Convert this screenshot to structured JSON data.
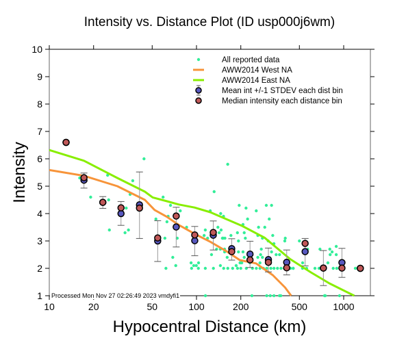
{
  "chart_data": {
    "type": "scatter",
    "title": "Intensity vs. Distance Plot (ID usp000j6wm)",
    "xlabel": "Hypocentral Distance (km)",
    "ylabel": "Intensity",
    "xscale": "log",
    "xlim": [
      10,
      1520
    ],
    "ylim": [
      1,
      10
    ],
    "xticks": [
      10,
      20,
      50,
      100,
      200,
      500,
      1000
    ],
    "xtick_labels": [
      "10",
      "20",
      "50",
      "100",
      "200",
      "500",
      "1000"
    ],
    "yticks": [
      1,
      2,
      3,
      4,
      5,
      6,
      7,
      8,
      9,
      10
    ],
    "ytick_labels": [
      "1",
      "2",
      "3",
      "4",
      "5",
      "6",
      "7",
      "8",
      "9",
      "10"
    ],
    "grid": false,
    "legend_position": "top-right",
    "footer": "Processed Mon Nov 27 02:26:49 2023 vmdyfi1",
    "colors": {
      "scatter": "#33ee99",
      "west": "#f7943a",
      "east": "#88ee00",
      "mean": "#5858c0",
      "median": "#c05858",
      "errorbar": "#999999"
    },
    "legend": [
      {
        "label": "All reported data",
        "kind": "scatter"
      },
      {
        "label": "AWW2014 West NA",
        "kind": "west"
      },
      {
        "label": "AWW2014 East NA",
        "kind": "east"
      },
      {
        "label": "Mean int +/-1 STDEV each dist bin",
        "kind": "mean"
      },
      {
        "label": "Median intensity each distance bin",
        "kind": "median"
      }
    ],
    "series": [
      {
        "name": "AWW2014 West NA",
        "type": "line",
        "x": [
          10,
          17.2,
          29.0,
          44.6,
          52.0,
          63.0,
          75.5,
          97.0,
          124.0,
          159.0,
          197.0,
          254.0,
          330.0,
          400.0,
          440.0
        ],
        "y": [
          5.59,
          5.38,
          5.0,
          4.5,
          4.13,
          3.88,
          3.59,
          3.26,
          2.97,
          2.63,
          2.3,
          2.18,
          1.75,
          1.3,
          1.0
        ]
      },
      {
        "name": "AWW2014 East NA",
        "type": "line",
        "x": [
          10,
          17.2,
          29.0,
          44.6,
          50.4,
          63.0,
          76.0,
          97.0,
          124.0,
          159.0,
          204.0,
          290.0,
          432.0,
          600.0,
          800.0,
          1180.0
        ],
        "y": [
          6.32,
          5.93,
          5.3,
          4.8,
          4.59,
          4.45,
          4.33,
          4.22,
          4.05,
          3.8,
          3.55,
          3.12,
          2.34,
          1.85,
          1.45,
          1.0
        ]
      },
      {
        "name": "Mean int +/-1 STDEV each dist bin",
        "type": "errorbar",
        "x": [
          13.0,
          17.2,
          23.1,
          30.7,
          41.0,
          54.5,
          72.8,
          97.3,
          130.0,
          173.5,
          231.0,
          308.0,
          410.0,
          547.0,
          728.0,
          973.0,
          1297.0
        ],
        "y": [
          6.6,
          5.22,
          4.41,
          4.0,
          4.32,
          3.0,
          3.51,
          3.01,
          3.21,
          2.72,
          2.52,
          2.32,
          2.22,
          2.61,
          2.01,
          2.21,
          2.0
        ],
        "err_low": [
          null,
          4.93,
          4.19,
          3.57,
          3.09,
          2.25,
          2.78,
          2.46,
          2.67,
          2.3,
          2.03,
          1.87,
          1.76,
          2.09,
          1.37,
          1.67,
          null
        ],
        "err_high": [
          null,
          5.48,
          4.62,
          4.44,
          5.52,
          3.74,
          4.23,
          3.53,
          3.73,
          3.08,
          2.99,
          2.74,
          2.67,
          3.09,
          2.65,
          2.73,
          null
        ]
      },
      {
        "name": "Median intensity each distance bin",
        "type": "scatter",
        "x": [
          13.0,
          17.2,
          23.1,
          30.7,
          41.0,
          54.5,
          72.8,
          97.3,
          130.0,
          173.5,
          231.0,
          308.0,
          410.0,
          547.0,
          728.0,
          973.0,
          1297.0
        ],
        "y": [
          6.6,
          5.31,
          4.41,
          4.21,
          4.2,
          3.11,
          3.91,
          3.22,
          3.31,
          2.61,
          2.31,
          2.22,
          2.02,
          2.91,
          2.01,
          2.01,
          2.0
        ]
      },
      {
        "name": "All reported data",
        "type": "scatter",
        "points": [
          [
            16.1,
            5.3
          ],
          [
            19.1,
            4.6
          ],
          [
            24.9,
            5.4
          ],
          [
            25.3,
            4.5
          ],
          [
            33.3,
            4.2
          ],
          [
            35.4,
            4.7
          ],
          [
            36.9,
            5.2
          ],
          [
            44.0,
            6.0
          ],
          [
            25.6,
            3.4
          ],
          [
            34.5,
            3.4
          ],
          [
            32.7,
            3.3
          ],
          [
            59.3,
            4.6
          ],
          [
            64.2,
            3.9
          ],
          [
            66.6,
            4.3
          ],
          [
            53.0,
            3.8
          ],
          [
            63.0,
            3.7
          ],
          [
            61.0,
            3.1
          ],
          [
            77.6,
            4.1
          ],
          [
            74.0,
            3.1
          ],
          [
            85.7,
            3.5
          ],
          [
            69.0,
            2.4
          ],
          [
            72.3,
            2.1
          ],
          [
            62.0,
            2.0
          ],
          [
            114.8,
            3.4
          ],
          [
            112.7,
            3.2
          ],
          [
            119.0,
            3.1
          ],
          [
            126.5,
            2.5
          ],
          [
            139.8,
            3.5
          ],
          [
            142.5,
            3.3
          ],
          [
            137.0,
            2.7
          ],
          [
            151.6,
            3.1
          ],
          [
            155.2,
            2.7
          ],
          [
            124.0,
            4.1
          ],
          [
            146.0,
            4.0
          ],
          [
            131.8,
            4.8
          ],
          [
            103.3,
            2.2
          ],
          [
            91.9,
            2.2
          ],
          [
            92.6,
            2.0
          ],
          [
            99.7,
            2.1
          ],
          [
            114.8,
            2.0
          ],
          [
            130.3,
            2.0
          ],
          [
            145.3,
            2.1
          ],
          [
            153.0,
            2.0
          ],
          [
            163.2,
            2.0
          ],
          [
            161.6,
            2.4
          ],
          [
            163.0,
            5.8
          ],
          [
            195.0,
            4.3
          ],
          [
            217.0,
            4.2
          ],
          [
            254.7,
            4.1
          ],
          [
            298.0,
            4.3
          ],
          [
            323.6,
            4.3
          ],
          [
            222.4,
            3.8
          ],
          [
            312.0,
            3.8
          ],
          [
            207.0,
            3.6
          ],
          [
            264.0,
            3.5
          ],
          [
            152.6,
            3.9
          ],
          [
            147.0,
            3.4
          ],
          [
            291.0,
            3.5
          ],
          [
            189.7,
            3.3
          ],
          [
            211.0,
            3.3
          ],
          [
            329.6,
            3.2
          ],
          [
            171.4,
            3.2
          ],
          [
            261.0,
            3.2
          ],
          [
            150.0,
            3.1
          ],
          [
            156.0,
            3.1
          ],
          [
            192.8,
            3.0
          ],
          [
            214.7,
            3.1
          ],
          [
            280.5,
            3.1
          ],
          [
            307.0,
            3.0
          ],
          [
            335.7,
            2.9
          ],
          [
            401.0,
            3.1
          ],
          [
            398.0,
            3.0
          ],
          [
            145.3,
            2.7
          ],
          [
            155.2,
            2.6
          ],
          [
            192.8,
            2.6
          ],
          [
            207.0,
            2.6
          ],
          [
            275.6,
            2.7
          ],
          [
            323.6,
            2.6
          ],
          [
            347.6,
            2.5
          ],
          [
            366.5,
            2.5
          ],
          [
            272.6,
            2.5
          ],
          [
            211.0,
            2.4
          ],
          [
            261.0,
            2.4
          ],
          [
            280.5,
            2.4
          ],
          [
            203.0,
            2.2
          ],
          [
            186.0,
            2.1
          ],
          [
            95.8,
            2.1
          ],
          [
            197.7,
            2.2
          ],
          [
            230.6,
            2.2
          ],
          [
            270.0,
            2.2
          ],
          [
            307.8,
            2.2
          ],
          [
            526.0,
            2.2
          ],
          [
            103.0,
            2.0
          ],
          [
            176.0,
            2.0
          ],
          [
            190.0,
            2.0
          ],
          [
            200.0,
            2.0
          ],
          [
            218.0,
            2.0
          ],
          [
            240.0,
            2.0
          ],
          [
            255.0,
            2.0
          ],
          [
            270.0,
            2.0
          ],
          [
            285.0,
            2.0
          ],
          [
            300.0,
            2.0
          ],
          [
            320.0,
            2.0
          ],
          [
            336.0,
            2.0
          ],
          [
            355.0,
            2.0
          ],
          [
            375.0,
            2.0
          ],
          [
            395.0,
            2.0
          ],
          [
            416.0,
            2.0
          ],
          [
            435.0,
            2.0
          ],
          [
            454.0,
            2.0
          ],
          [
            115.0,
            1.0
          ],
          [
            238.0,
            1.0
          ],
          [
            300.0,
            1.0
          ],
          [
            317.0,
            1.0
          ],
          [
            336.0,
            1.0
          ],
          [
            366.0,
            1.0
          ],
          [
            374.0,
            1.0
          ],
          [
            500.0,
            3.0
          ],
          [
            569.0,
            2.7
          ],
          [
            690.0,
            2.7
          ],
          [
            805.0,
            2.7
          ],
          [
            890.0,
            2.8
          ],
          [
            834.0,
            2.6
          ],
          [
            890.0,
            2.5
          ],
          [
            809.0,
            2.5
          ],
          [
            781.0,
            2.2
          ],
          [
            454.0,
            2.0
          ],
          [
            525.0,
            2.0
          ],
          [
            560.0,
            2.0
          ],
          [
            638.0,
            2.0
          ],
          [
            680.0,
            2.0
          ],
          [
            849.0,
            2.0
          ],
          [
            897.0,
            2.0
          ],
          [
            1200.0,
            2.0
          ],
          [
            741.0,
            1.0
          ],
          [
            750.0,
            1.0
          ],
          [
            937.0,
            1.0
          ]
        ]
      }
    ]
  }
}
